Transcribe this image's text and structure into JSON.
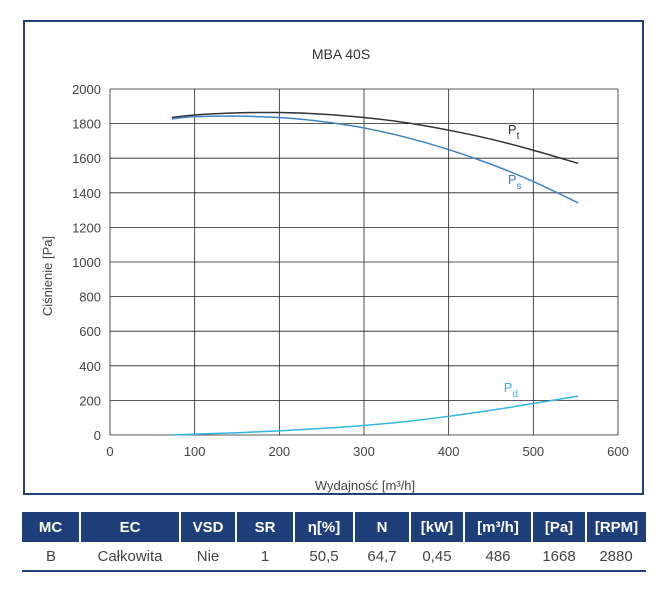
{
  "chart_data": {
    "type": "line",
    "title": "MBA 40S",
    "xlabel": "Wydajność [m³/h]",
    "ylabel": "Ciśnienie [Pa]",
    "xlim": [
      0,
      600
    ],
    "ylim": [
      0,
      2000
    ],
    "xticks": [
      0,
      100,
      200,
      300,
      400,
      500,
      600
    ],
    "yticks": [
      0,
      200,
      400,
      600,
      800,
      1000,
      1200,
      1400,
      1600,
      1800,
      2000
    ],
    "grid": true,
    "series": [
      {
        "name": "Pt",
        "name_main": "P",
        "name_sub": "t",
        "color": "#333333",
        "x": [
          73,
          100,
          150,
          200,
          250,
          300,
          350,
          400,
          450,
          500,
          553
        ],
        "y": [
          1835,
          1850,
          1862,
          1864,
          1855,
          1835,
          1805,
          1762,
          1710,
          1646,
          1570
        ]
      },
      {
        "name": "Ps",
        "name_main": "P",
        "name_sub": "s",
        "color": "#3d82c6",
        "x": [
          73,
          100,
          150,
          200,
          250,
          300,
          350,
          400,
          450,
          500,
          553
        ],
        "y": [
          1827,
          1840,
          1843,
          1835,
          1812,
          1775,
          1720,
          1650,
          1565,
          1465,
          1342
        ]
      },
      {
        "name": "Pd",
        "name_main": "P",
        "name_sub": "d",
        "color": "#30b5e4",
        "x": [
          73,
          100,
          150,
          200,
          250,
          300,
          350,
          400,
          450,
          500,
          553
        ],
        "y": [
          0,
          5,
          13,
          24,
          38,
          55,
          78,
          108,
          143,
          182,
          225
        ]
      }
    ]
  },
  "table": {
    "headers": [
      "MC",
      "EC",
      "VSD",
      "SR",
      "η[%]",
      "N",
      "[kW]",
      "[m³/h]",
      "[Pa]",
      "[RPM]"
    ],
    "row": [
      "B",
      "Całkowita",
      "Nie",
      "1",
      "50,5",
      "64,7",
      "0,45",
      "486",
      "1668",
      "2880"
    ]
  }
}
